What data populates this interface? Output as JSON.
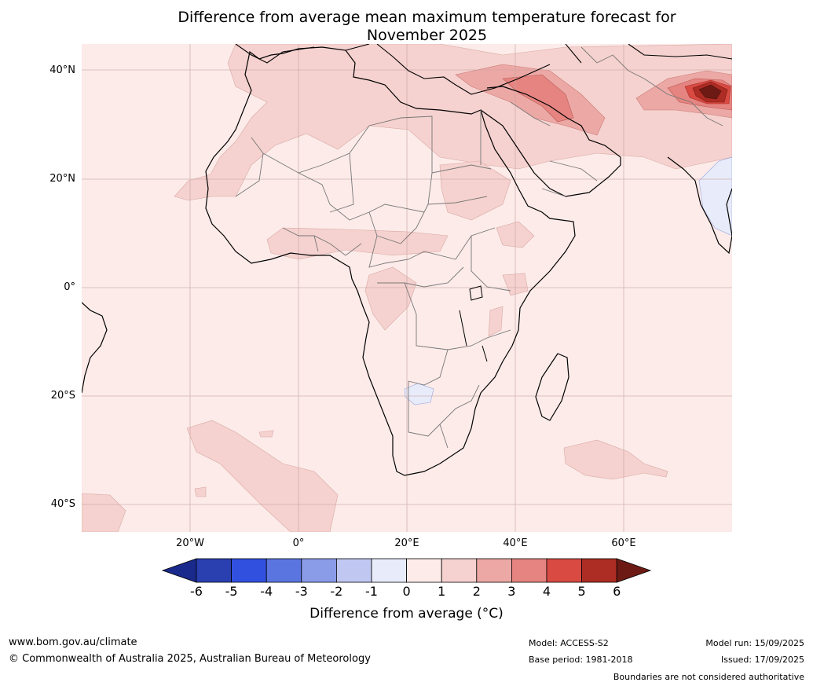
{
  "title": {
    "line1": "Difference from average mean maximum temperature forecast for",
    "line2": "November 2025"
  },
  "map": {
    "region": "Africa",
    "lat_labels": [
      "40°N",
      "20°N",
      "0°",
      "20°S",
      "40°S"
    ],
    "lon_labels": [
      "20°W",
      "0°",
      "20°E",
      "40°E",
      "60°E"
    ],
    "gridlines": true,
    "background_color": "#fcebe9"
  },
  "colorbar": {
    "label": "Difference from average (°C)",
    "ticks": [
      "-6",
      "-5",
      "-4",
      "-3",
      "-2",
      "-1",
      "0",
      "1",
      "2",
      "3",
      "4",
      "5",
      "6"
    ],
    "colors": [
      "#1a2a8c",
      "#2a3fb0",
      "#3250e0",
      "#5b75e0",
      "#8a9ce8",
      "#c0c8f2",
      "#e8ecfa",
      "#fcebe9",
      "#f5d2cf",
      "#eca8a5",
      "#e58480",
      "#d84a42",
      "#ad2c24",
      "#6e1a14"
    ]
  },
  "footer": {
    "website": "www.bom.gov.au/climate",
    "copyright": "© Commonwealth of Australia 2025, Australian Bureau of Meteorology",
    "model": "Model: ACCESS-S2",
    "base_period": "Base period: 1981-2018",
    "model_run": "Model run: 15/09/2025",
    "issued": "Issued: 17/09/2025",
    "disclaimer": "Boundaries are not considered authoritative"
  }
}
